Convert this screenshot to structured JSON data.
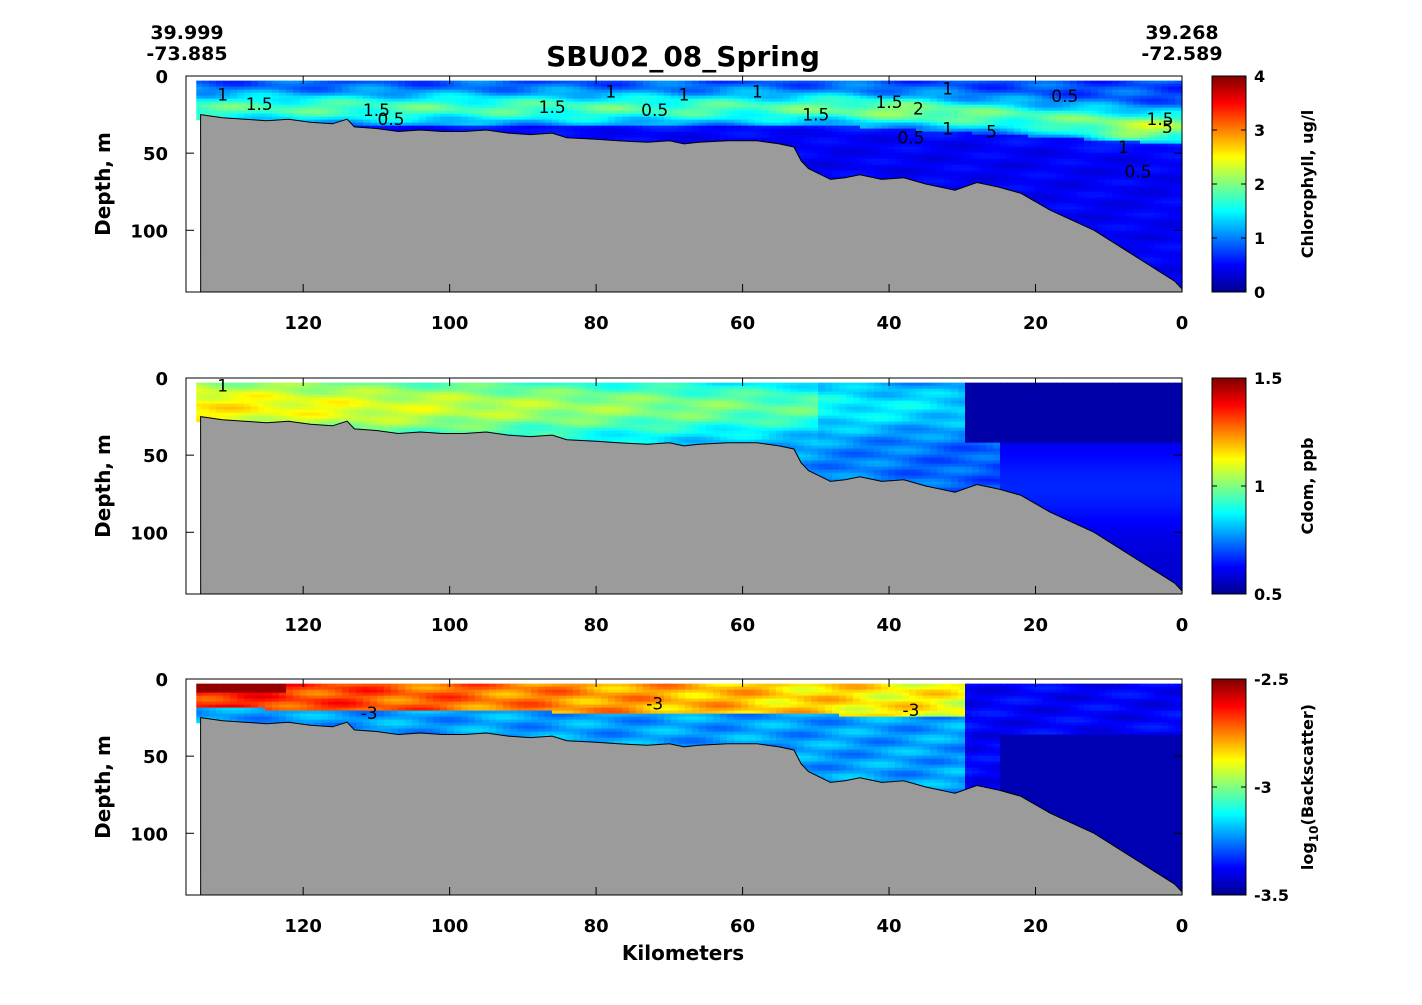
{
  "title": "SBU02_08_Spring",
  "left_coords": {
    "lat": "39.999",
    "lon": "-73.885"
  },
  "right_coords": {
    "lat": "39.268",
    "lon": "-72.589"
  },
  "colors": {
    "seafloor": "#9b9b9b",
    "colormap": "jet"
  },
  "chart_data": [
    {
      "type": "heatmap",
      "title": "SBU02_08_Spring",
      "xlabel": "",
      "ylabel": "Depth, m",
      "xlim": [
        136,
        0
      ],
      "ylim": [
        140,
        0
      ],
      "xticks": [
        "120",
        "100",
        "80",
        "60",
        "40",
        "20",
        "0"
      ],
      "yticks": [
        "0",
        "50",
        "100"
      ],
      "colorbar": {
        "label": "Chlorophyll, ug/l",
        "range": [
          0,
          4
        ],
        "ticks": [
          "0",
          "1",
          "2",
          "3",
          "4"
        ]
      },
      "contour_labels": [
        {
          "text": "1",
          "x": 131,
          "y": 12
        },
        {
          "text": "1.5",
          "x": 126,
          "y": 18
        },
        {
          "text": "1.5",
          "x": 110,
          "y": 22
        },
        {
          "text": "0.5",
          "x": 108,
          "y": 28
        },
        {
          "text": "1.5",
          "x": 86,
          "y": 20
        },
        {
          "text": "1",
          "x": 78,
          "y": 10
        },
        {
          "text": "0.5",
          "x": 72,
          "y": 22
        },
        {
          "text": "1",
          "x": 68,
          "y": 12
        },
        {
          "text": "1",
          "x": 58,
          "y": 10
        },
        {
          "text": "1.5",
          "x": 50,
          "y": 25
        },
        {
          "text": "1.5",
          "x": 40,
          "y": 17
        },
        {
          "text": "2",
          "x": 36,
          "y": 21
        },
        {
          "text": "0.5",
          "x": 37,
          "y": 40
        },
        {
          "text": "1",
          "x": 32,
          "y": 8
        },
        {
          "text": "1",
          "x": 32,
          "y": 34
        },
        {
          "text": "5",
          "x": 26,
          "y": 36
        },
        {
          "text": "0.5",
          "x": 16,
          "y": 13
        },
        {
          "text": "1.5",
          "x": 3,
          "y": 28
        },
        {
          "text": "5",
          "x": 2,
          "y": 33
        },
        {
          "text": "1",
          "x": 8,
          "y": 46
        },
        {
          "text": "0.5",
          "x": 6,
          "y": 62
        }
      ]
    },
    {
      "type": "heatmap",
      "xlabel": "",
      "ylabel": "Depth, m",
      "xlim": [
        136,
        0
      ],
      "ylim": [
        140,
        0
      ],
      "xticks": [
        "120",
        "100",
        "80",
        "60",
        "40",
        "20",
        "0"
      ],
      "yticks": [
        "0",
        "50",
        "100"
      ],
      "colorbar": {
        "label": "Cdom, ppb",
        "range": [
          0.5,
          1.5
        ],
        "ticks": [
          "0.5",
          "1",
          "1.5"
        ]
      },
      "contour_labels": [
        {
          "text": "1",
          "x": 131,
          "y": 5
        }
      ]
    },
    {
      "type": "heatmap",
      "xlabel": "Kilometers",
      "ylabel": "Depth, m",
      "xlim": [
        136,
        0
      ],
      "ylim": [
        140,
        0
      ],
      "xticks": [
        "120",
        "100",
        "80",
        "60",
        "40",
        "20",
        "0"
      ],
      "yticks": [
        "0",
        "50",
        "100"
      ],
      "colorbar": {
        "label_main": "log",
        "label_sub": "10",
        "label_rest": "(Backscatter)",
        "range": [
          -3.5,
          -2.5
        ],
        "ticks": [
          "-3.5",
          "-3",
          "-2.5"
        ]
      },
      "contour_labels": [
        {
          "text": "-3",
          "x": 111,
          "y": 22
        },
        {
          "text": "-3",
          "x": 72,
          "y": 16
        },
        {
          "text": "-3",
          "x": 37,
          "y": 20
        }
      ]
    }
  ],
  "bathymetry": [
    [
      134,
      25
    ],
    [
      131,
      27
    ],
    [
      128,
      28
    ],
    [
      125,
      29
    ],
    [
      122,
      28
    ],
    [
      119,
      30
    ],
    [
      116,
      31
    ],
    [
      114,
      28
    ],
    [
      113,
      33
    ],
    [
      110,
      34
    ],
    [
      107,
      36
    ],
    [
      104,
      35
    ],
    [
      101,
      36
    ],
    [
      98,
      36
    ],
    [
      95,
      35
    ],
    [
      92,
      37
    ],
    [
      89,
      38
    ],
    [
      86,
      37
    ],
    [
      84,
      40
    ],
    [
      80,
      41
    ],
    [
      77,
      42
    ],
    [
      73,
      43
    ],
    [
      70,
      42
    ],
    [
      68,
      44
    ],
    [
      66,
      43
    ],
    [
      62,
      42
    ],
    [
      58,
      42
    ],
    [
      55,
      44
    ],
    [
      53,
      46
    ],
    [
      52,
      55
    ],
    [
      51,
      60
    ],
    [
      48,
      67
    ],
    [
      46,
      66
    ],
    [
      44,
      64
    ],
    [
      41,
      67
    ],
    [
      38,
      66
    ],
    [
      35,
      70
    ],
    [
      31,
      74
    ],
    [
      28,
      69
    ],
    [
      25,
      72
    ],
    [
      22,
      76
    ],
    [
      18,
      87
    ],
    [
      12,
      100
    ],
    [
      8,
      112
    ],
    [
      4,
      124
    ],
    [
      1,
      133
    ],
    [
      0,
      138
    ]
  ]
}
